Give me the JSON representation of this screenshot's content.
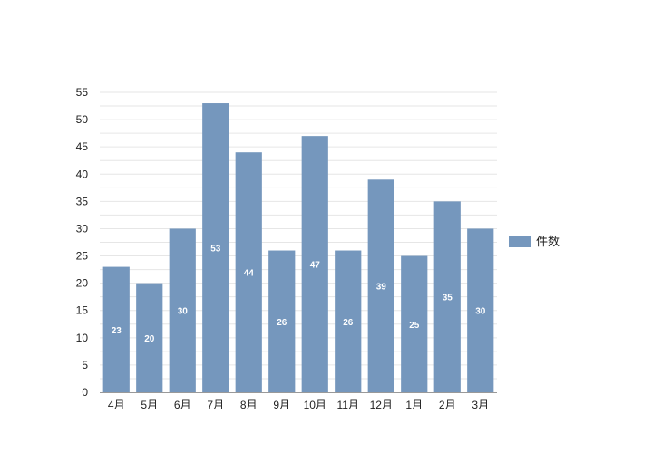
{
  "chart_data": {
    "type": "bar",
    "categories": [
      "4月",
      "5月",
      "6月",
      "7月",
      "8月",
      "9月",
      "10月",
      "11月",
      "12月",
      "1月",
      "2月",
      "3月"
    ],
    "series": [
      {
        "name": "件数",
        "values": [
          23,
          20,
          30,
          53,
          44,
          26,
          47,
          26,
          39,
          25,
          35,
          30
        ],
        "color": "#7597bd"
      }
    ],
    "title": "",
    "xlabel": "",
    "ylabel": "",
    "ylim": [
      0,
      55
    ],
    "yticks": [
      0,
      5,
      10,
      15,
      20,
      25,
      30,
      35,
      40,
      45,
      50,
      55
    ],
    "grid": true,
    "legend_position": "right",
    "data_labels": true
  }
}
